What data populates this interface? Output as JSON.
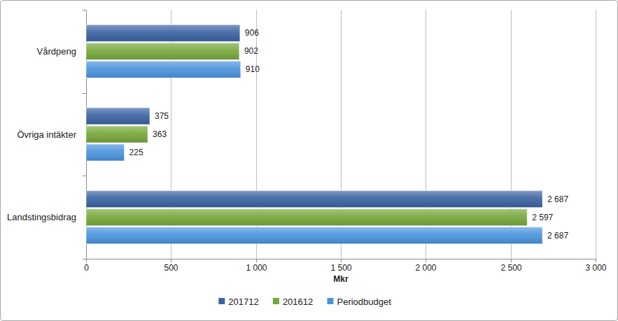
{
  "chart_data": {
    "type": "bar",
    "orientation": "horizontal",
    "categories": [
      "Vårdpeng",
      "Övriga intäkter",
      "Landstingsbidrag"
    ],
    "series": [
      {
        "name": "201712",
        "color": "#3b63a3",
        "values": [
          906,
          375,
          2687
        ],
        "value_labels": [
          "906",
          "375",
          "2 687"
        ]
      },
      {
        "name": "201612",
        "color": "#77a73a",
        "values": [
          902,
          363,
          2597
        ],
        "value_labels": [
          "902",
          "363",
          "2 597"
        ]
      },
      {
        "name": "Periodbudget",
        "color": "#4a93dd",
        "values": [
          910,
          225,
          2687
        ],
        "value_labels": [
          "910",
          "225",
          "2 687"
        ]
      }
    ],
    "x_label": "Mkr",
    "xlim": [
      0,
      3000
    ],
    "xticks": [
      0,
      500,
      {
        "value": 1000,
        "label": "1 000"
      },
      {
        "value": 1500,
        "label": "1 500"
      },
      {
        "value": 2000,
        "label": "2 000"
      },
      {
        "value": 2500,
        "label": "2 500"
      },
      {
        "value": 3000,
        "label": "3 000"
      }
    ],
    "grid": true,
    "legend": "bottom",
    "data_labels": true
  }
}
